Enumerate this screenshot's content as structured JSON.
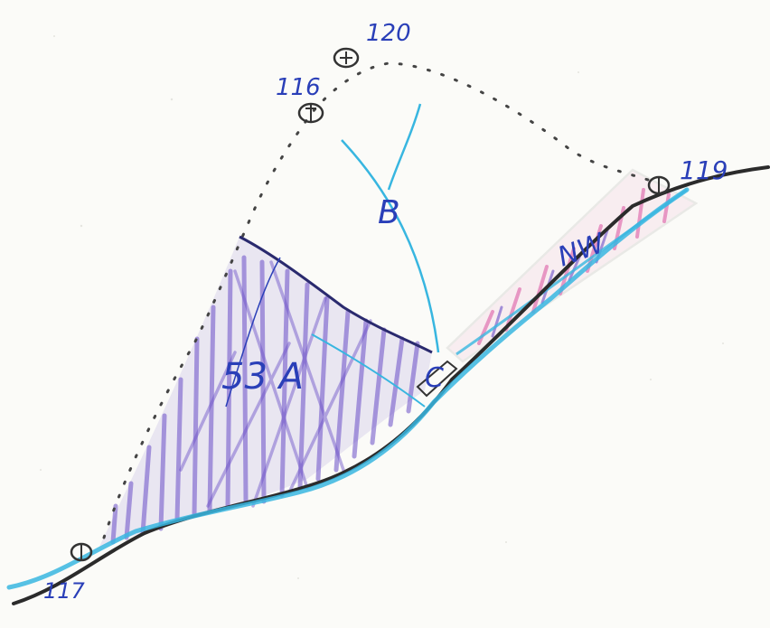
{
  "labels": {
    "point_116": "116",
    "point_120": "120",
    "point_119": "119",
    "point_bottom": "117",
    "zone_a": "53 A",
    "zone_b": "B",
    "zone_c": "C",
    "zone_nw": "NW"
  },
  "colors": {
    "ground_line": "#2b2b2b",
    "cyan_line": "#38b6e0",
    "hatch_purple": "#6b4fc8",
    "hatch_pink": "#e27ab5",
    "label_blue": "#2a3fb8",
    "paper": "#fbfbf8"
  }
}
